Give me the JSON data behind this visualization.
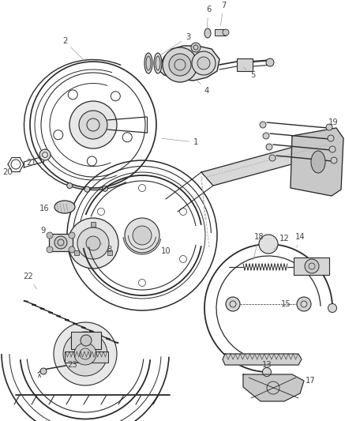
{
  "bg_color": "#ffffff",
  "line_color": "#2a2a2a",
  "gray_fill": "#d8d8d8",
  "label_color": "#444444",
  "leader_color": "#999999",
  "fig_w": 4.37,
  "fig_h": 5.33,
  "dpi": 100,
  "label_fontsize": 7.0,
  "lw_main": 1.0,
  "lw_thin": 0.6,
  "labels": {
    "1": [
      200,
      173,
      255,
      178
    ],
    "2": [
      115,
      68,
      82,
      55
    ],
    "3": [
      218,
      65,
      238,
      50
    ],
    "4": [
      242,
      110,
      255,
      122
    ],
    "5": [
      298,
      78,
      308,
      92
    ],
    "6": [
      255,
      15,
      260,
      8
    ],
    "7": [
      275,
      10,
      280,
      5
    ],
    "8": [
      138,
      302,
      132,
      314
    ],
    "9": [
      80,
      290,
      60,
      290
    ],
    "10": [
      197,
      305,
      207,
      316
    ],
    "12": [
      345,
      315,
      357,
      303
    ],
    "13": [
      326,
      448,
      330,
      458
    ],
    "14": [
      368,
      312,
      378,
      302
    ],
    "15": [
      340,
      382,
      354,
      382
    ],
    "16": [
      78,
      250,
      60,
      262
    ],
    "17": [
      375,
      476,
      388,
      480
    ],
    "18": [
      322,
      305,
      325,
      293
    ],
    "19": [
      410,
      185,
      420,
      162
    ],
    "20": [
      25,
      208,
      12,
      218
    ],
    "21": [
      58,
      196,
      42,
      205
    ],
    "22": [
      52,
      360,
      38,
      352
    ],
    "23": [
      100,
      450,
      90,
      460
    ]
  }
}
